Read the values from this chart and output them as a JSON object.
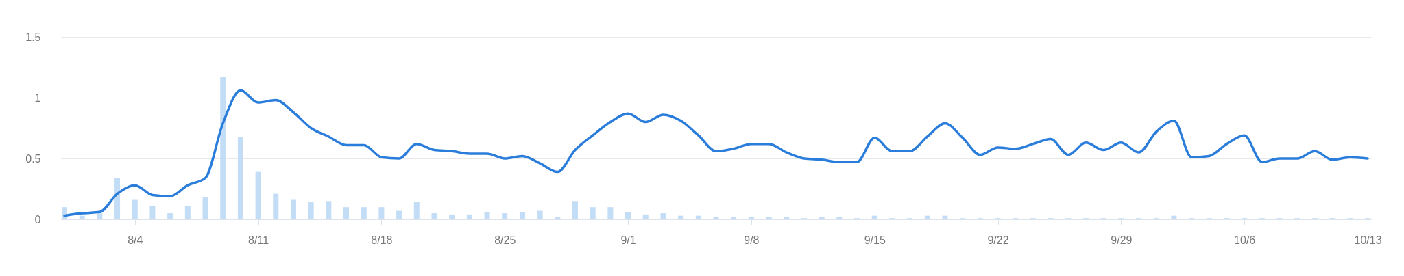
{
  "chart_data": {
    "type": "bar",
    "x": [
      "--07-31",
      "--08-01",
      "--08-02",
      "--08-03",
      "--08-04",
      "--08-05",
      "--08-06",
      "--08-07",
      "--08-08",
      "--08-09",
      "--08-10",
      "--08-11",
      "--08-12",
      "--08-13",
      "--08-14",
      "--08-15",
      "--08-16",
      "--08-17",
      "--08-18",
      "--08-19",
      "--08-20",
      "--08-21",
      "--08-22",
      "--08-23",
      "--08-24",
      "--08-25",
      "--08-26",
      "--08-27",
      "--08-28",
      "--08-29",
      "--08-30",
      "--08-31",
      "--09-01",
      "--09-02",
      "--09-03",
      "--09-04",
      "--09-05",
      "--09-06",
      "--09-07",
      "--09-08",
      "--09-09",
      "--09-10",
      "--09-11",
      "--09-12",
      "--09-13",
      "--09-14",
      "--09-15",
      "--09-16",
      "--09-17",
      "--09-18",
      "--09-19",
      "--09-20",
      "--09-21",
      "--09-22",
      "--09-23",
      "--09-24",
      "--09-25",
      "--09-26",
      "--09-27",
      "--09-28",
      "--09-29",
      "--09-30",
      "--10-01",
      "--10-02",
      "--10-03",
      "--10-04",
      "--10-05",
      "--10-06",
      "--10-07",
      "--10-08",
      "--10-09",
      "--10-10",
      "--10-11",
      "--10-12",
      "--10-13"
    ],
    "xlim": [
      "--07-31",
      "--10-13"
    ],
    "xticks": [
      {
        "value": "--08-04",
        "label": "8/4"
      },
      {
        "value": "--08-11",
        "label": "8/11"
      },
      {
        "value": "--08-18",
        "label": "8/18"
      },
      {
        "value": "--08-25",
        "label": "8/25"
      },
      {
        "value": "--09-01",
        "label": "9/1"
      },
      {
        "value": "--09-08",
        "label": "9/8"
      },
      {
        "value": "--09-15",
        "label": "9/15"
      },
      {
        "value": "--09-22",
        "label": "9/22"
      },
      {
        "value": "--09-29",
        "label": "9/29"
      },
      {
        "value": "--10-06",
        "label": "10/6"
      },
      {
        "value": "--10-13",
        "label": "10/13"
      }
    ],
    "ylim": [
      0,
      1.5
    ],
    "yticks": [
      0,
      0.5,
      1,
      1.5
    ],
    "grid": "y",
    "series": [
      {
        "color": "#c2ddf5",
        "values": [
          0.1,
          0.03,
          0.05,
          0.34,
          0.16,
          0.11,
          0.05,
          0.11,
          0.18,
          1.17,
          0.68,
          0.39,
          0.21,
          0.16,
          0.14,
          0.15,
          0.1,
          0.1,
          0.1,
          0.07,
          0.14,
          0.05,
          0.04,
          0.04,
          0.06,
          0.05,
          0.06,
          0.07,
          0.02,
          0.15,
          0.1,
          0.1,
          0.06,
          0.04,
          0.05,
          0.03,
          0.03,
          0.02,
          0.02,
          0.02,
          0.02,
          0.02,
          0.01,
          0.02,
          0.02,
          0.01,
          0.03,
          0.01,
          0.01,
          0.03,
          0.03,
          0.01,
          0.01,
          0.01,
          0.01,
          0.01,
          0.01,
          0.01,
          0.01,
          0.01,
          0.01,
          0.01,
          0.01,
          0.03,
          0.01,
          0.01,
          0.01,
          0.01,
          0.01,
          0.01,
          0.01,
          0.01,
          0.01,
          0.01,
          0.01
        ]
      },
      {
        "type": "line",
        "color": "#2b7ddb",
        "values": [
          0.03,
          0.05,
          0.06,
          0.21,
          0.28,
          0.2,
          0.19,
          0.28,
          0.34,
          0.79,
          1.06,
          0.96,
          0.98,
          0.88,
          0.75,
          0.68,
          0.61,
          0.61,
          0.51,
          0.5,
          0.62,
          0.57,
          0.56,
          0.54,
          0.54,
          0.5,
          0.52,
          0.46,
          0.39,
          0.57,
          0.69,
          0.8,
          0.87,
          0.8,
          0.86,
          0.81,
          0.69,
          0.56,
          0.58,
          0.62,
          0.62,
          0.55,
          0.5,
          0.49,
          0.47,
          0.47,
          0.67,
          0.56,
          0.56,
          0.68,
          0.79,
          0.67,
          0.53,
          0.59,
          0.58,
          0.62,
          0.66,
          0.53,
          0.63,
          0.57,
          0.63,
          0.55,
          0.72,
          0.81,
          0.51,
          0.52,
          0.62,
          0.69,
          0.47,
          0.5,
          0.5,
          0.56,
          0.49,
          0.51,
          0.5
        ]
      }
    ]
  }
}
